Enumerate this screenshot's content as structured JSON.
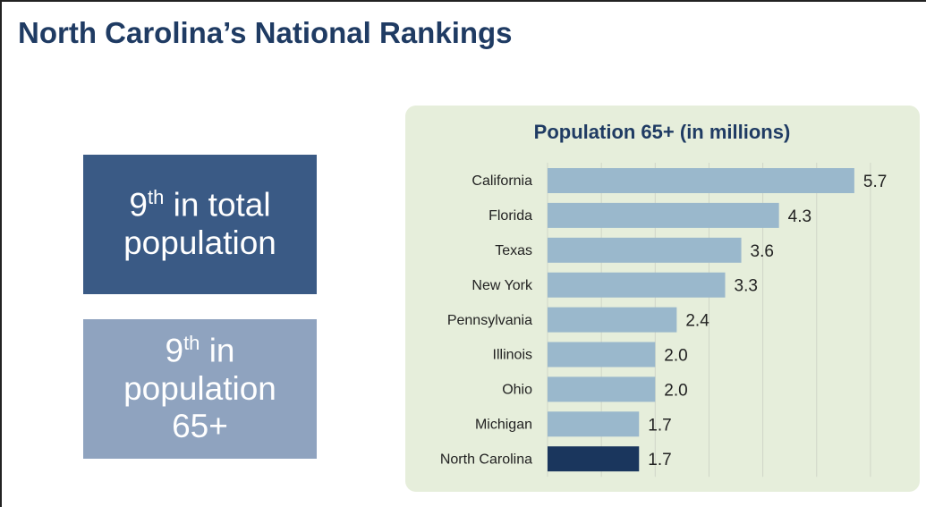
{
  "header": {
    "title": "North Carolina’s National Rankings"
  },
  "rankings": [
    {
      "rank": "9",
      "ordinal": "th",
      "label": "in total population",
      "color": "#3a5a85"
    },
    {
      "rank": "9",
      "ordinal": "th",
      "label": "in population 65+",
      "color": "#8fa3bf"
    }
  ],
  "chart_data": {
    "type": "barh",
    "title": "Population 65+ (in millions)",
    "categories": [
      "California",
      "Florida",
      "Texas",
      "New York",
      "Pennsylvania",
      "Illinois",
      "Ohio",
      "Michigan",
      "North Carolina"
    ],
    "values": [
      5.7,
      4.3,
      3.6,
      3.3,
      2.4,
      2.0,
      2.0,
      1.7,
      1.7
    ],
    "value_labels": [
      "5.7",
      "4.3",
      "3.6",
      "3.3",
      "2.4",
      "2.0",
      "2.0",
      "1.7",
      "1.7"
    ],
    "colors": [
      "#9ab8cc",
      "#9ab8cc",
      "#9ab8cc",
      "#9ab8cc",
      "#9ab8cc",
      "#9ab8cc",
      "#9ab8cc",
      "#9ab8cc",
      "#1a365d"
    ],
    "xlim": [
      0,
      6.5
    ],
    "xticks": [
      0,
      1,
      2,
      3,
      4,
      5,
      6
    ],
    "grid": true
  }
}
